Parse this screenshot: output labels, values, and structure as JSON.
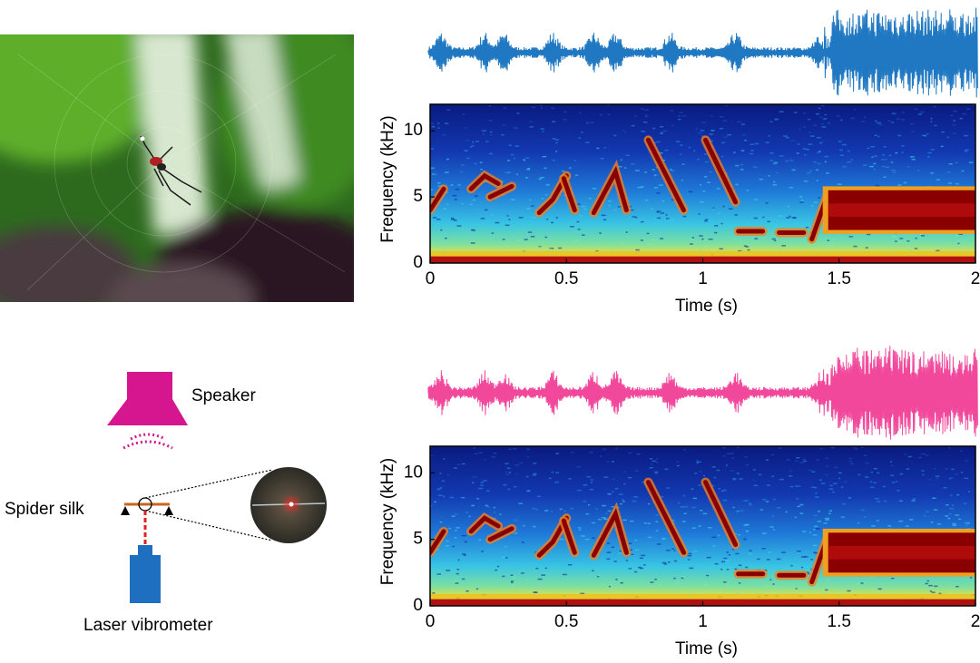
{
  "figure": {
    "diagram": {
      "speaker": "Speaker",
      "silk": "Spider silk",
      "vibrometer": "Laser vibrometer"
    },
    "panels": [
      {
        "ylabel": "Frequency (kHz)",
        "xlabel": "Time (s)",
        "xlim": [
          0,
          2
        ],
        "ylim": [
          0,
          12
        ],
        "xticks": [
          0,
          0.5,
          1,
          1.5,
          2
        ],
        "yticks": [
          0,
          5,
          10
        ],
        "color": "#1f78c1"
      },
      {
        "ylabel": "Frequency (kHz)",
        "xlabel": "Time (s)",
        "xlim": [
          0,
          2
        ],
        "ylim": [
          0,
          12
        ],
        "xticks": [
          0,
          0.5,
          1,
          1.5,
          2
        ],
        "yticks": [
          0,
          5,
          10
        ],
        "color": "#f2489c"
      }
    ]
  }
}
